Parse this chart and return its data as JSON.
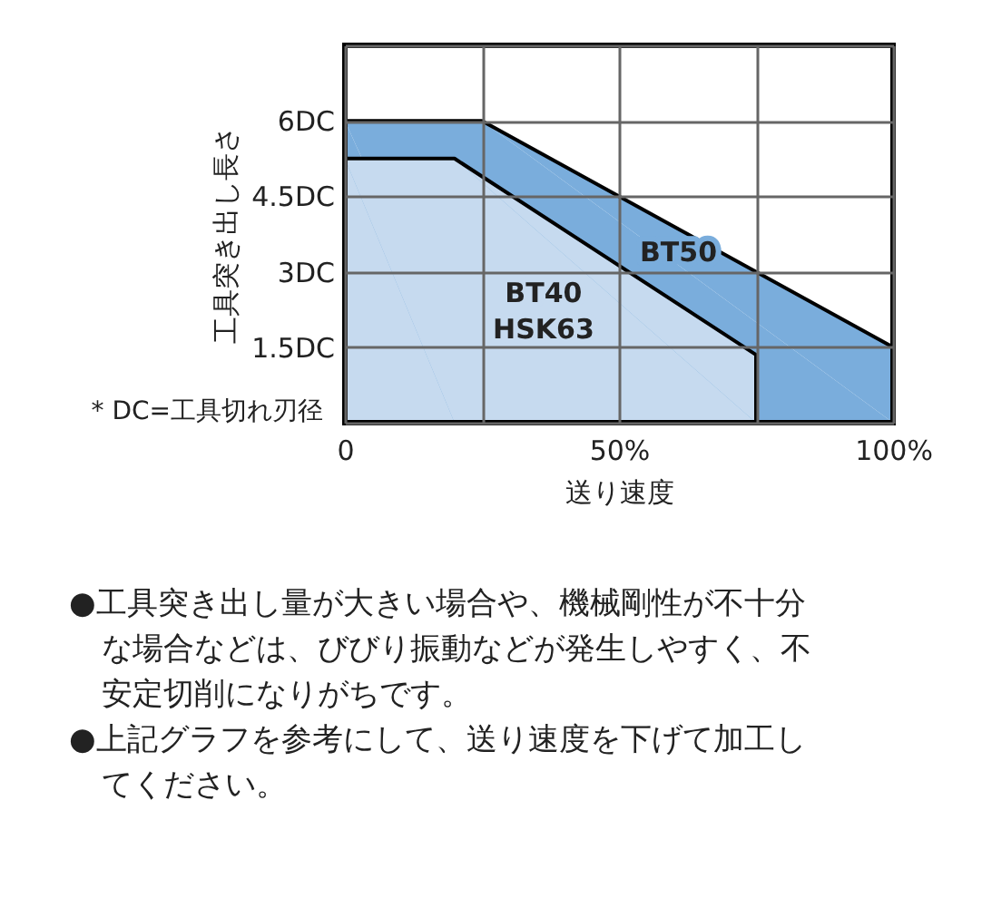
{
  "chart_data": {
    "type": "area",
    "xlabel": "送り速度",
    "ylabel": "工具突き出し長さ",
    "series": [
      {
        "name": "BT50",
        "color": "#7aaddc",
        "x": [
          0,
          25,
          100,
          100
        ],
        "values": [
          6,
          6,
          1.5,
          0
        ]
      },
      {
        "name": "BT40\nHSK63",
        "color": "#c6daef",
        "x": [
          0,
          20,
          75,
          75
        ],
        "values": [
          5.25,
          5.25,
          1.35,
          0
        ]
      }
    ],
    "xlim": [
      0,
      100
    ],
    "xticks": [
      0,
      {
        "value": 25,
        "label": null
      },
      {
        "value": 50,
        "label": "50%"
      },
      {
        "value": 75,
        "label": null
      },
      {
        "value": 100,
        "label": "100%"
      }
    ],
    "ylim": [
      0,
      7.5
    ],
    "yticks": [
      {
        "value": 0,
        "label": null
      },
      {
        "value": 1.5,
        "label": "1.5DC"
      },
      {
        "value": 3,
        "label": "3DC"
      },
      {
        "value": 4.5,
        "label": "4.5DC"
      },
      {
        "value": 6,
        "label": "6DC"
      },
      {
        "value": 7.5,
        "label": null
      }
    ],
    "grid": true,
    "annotations": [
      "* DC=工具切れ刃径",
      "●工具突き出し量が大きい場合や、機械剛性が不十分な場合などは、びびり振動などが発生しやすく、不安定切削になりがちです。",
      "●上記グラフを参考にして、送り速度を下げて加工してください。"
    ]
  }
}
